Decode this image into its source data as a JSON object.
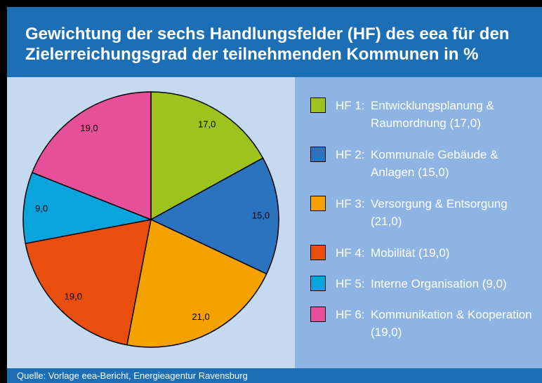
{
  "chart_data": {
    "type": "pie",
    "title": "Gewichtung der sechs Handlungsfelder (HF) des eea für den Zielerreichungsgrad der teilnehmenden Kommunen in %",
    "categories": [
      "HF 1:",
      "HF 2:",
      "HF 3:",
      "HF 4:",
      "HF 5:",
      "HF 6:"
    ],
    "descriptions": [
      "Entwicklungsplanung & Raumordnung (17,0)",
      "Kommunale Gebäude & Anlagen (15,0)",
      "Versorgung & Entsorgung (21,0)",
      "Mobilität (19,0)",
      "Interne Organisation (9,0)",
      "Kommunikation & Kooperation (19,0)"
    ],
    "values": [
      17,
      15,
      21,
      19,
      9,
      19
    ],
    "value_labels": [
      "17,0",
      "15,0",
      "21,0",
      "19,0",
      "9,0",
      "19,0"
    ],
    "colors": [
      "#9dc31f",
      "#2a73be",
      "#f5a100",
      "#e94e0f",
      "#0aa4dd",
      "#e6509a"
    ],
    "source": "Quelle: Vorlage eea-Bericht, Energieagentur Ravensburg"
  }
}
